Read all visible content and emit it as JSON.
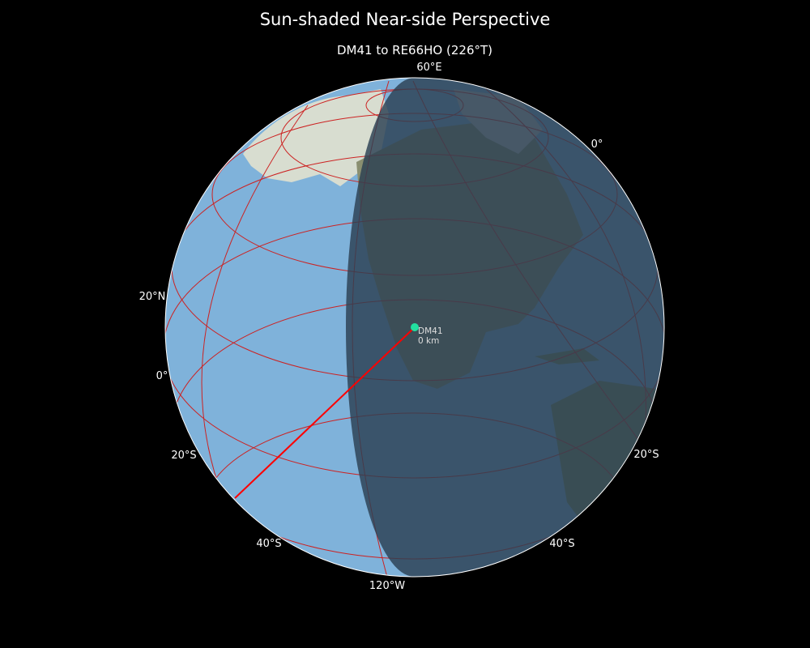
{
  "title": "Sun-shaded Near-side Perspective",
  "subtitle": "DM41 to RE66HO (226°T)",
  "projection": "near-side perspective",
  "colors": {
    "ocean": "#7fb2da",
    "night_overlay": "#2b3f52",
    "gridlines": "#cc2222",
    "path": "#ff0000",
    "marker": "#22e0a0",
    "background": "#000000"
  },
  "grid_labels": {
    "top": "60°E",
    "right_top": "0°",
    "left_20n": "20°N",
    "left_0": "0°",
    "left_20s": "20°S",
    "right_20s": "20°S",
    "left_40s": "40°S",
    "right_40s": "40°S",
    "bottom": "120°W"
  },
  "marker": {
    "name": "DM41",
    "distance": "0 km"
  }
}
